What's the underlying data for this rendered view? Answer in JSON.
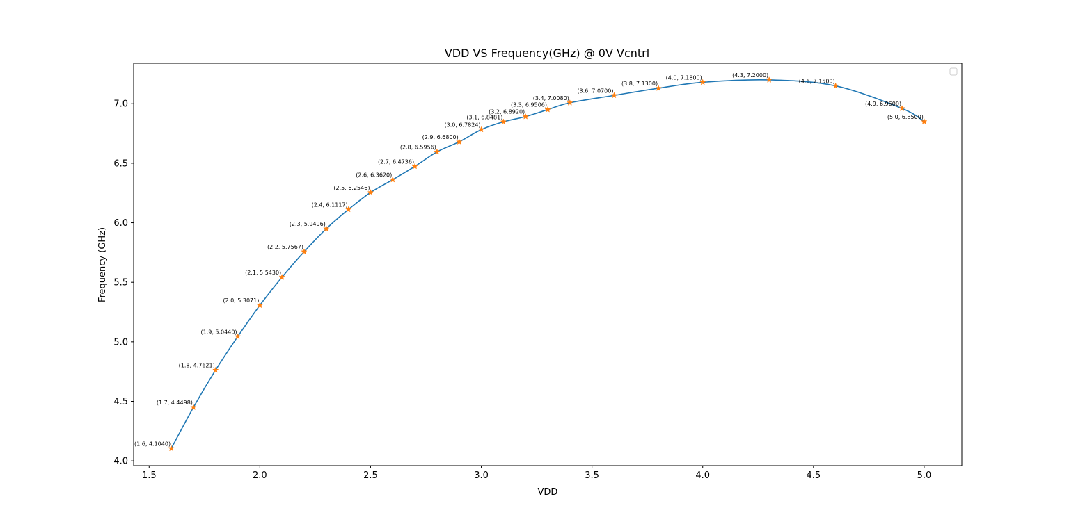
{
  "chart_data": {
    "type": "line",
    "title": "VDD VS Frequency(GHz) @ 0V Vcntrl",
    "xlabel": "VDD",
    "ylabel": "Frequency (GHz)",
    "xlim": [
      1.43,
      5.17
    ],
    "ylim": [
      3.96,
      7.34
    ],
    "xticks": [
      "1.5",
      "2.0",
      "2.5",
      "3.0",
      "3.5",
      "4.0",
      "4.5",
      "5.0"
    ],
    "xtick_values": [
      1.5,
      2.0,
      2.5,
      3.0,
      3.5,
      4.0,
      4.5,
      5.0
    ],
    "yticks": [
      "4.0",
      "4.5",
      "5.0",
      "5.5",
      "6.0",
      "6.5",
      "7.0"
    ],
    "ytick_values": [
      4.0,
      4.5,
      5.0,
      5.5,
      6.0,
      6.5,
      7.0
    ],
    "grid": false,
    "legend": "top-right",
    "line_color": "#1f77b4",
    "marker_color": "#ff7f0e",
    "marker": "star",
    "points": [
      {
        "x": 1.6,
        "y": 4.104,
        "label": "(1.6, 4.1040)"
      },
      {
        "x": 1.7,
        "y": 4.4498,
        "label": "(1.7, 4.4498)"
      },
      {
        "x": 1.8,
        "y": 4.7621,
        "label": "(1.8, 4.7621)"
      },
      {
        "x": 1.9,
        "y": 5.044,
        "label": "(1.9, 5.0440)"
      },
      {
        "x": 2.0,
        "y": 5.3071,
        "label": "(2.0, 5.3071)"
      },
      {
        "x": 2.1,
        "y": 5.543,
        "label": "(2.1, 5.5430)"
      },
      {
        "x": 2.2,
        "y": 5.7567,
        "label": "(2.2, 5.7567)"
      },
      {
        "x": 2.3,
        "y": 5.9496,
        "label": "(2.3, 5.9496)"
      },
      {
        "x": 2.4,
        "y": 6.1117,
        "label": "(2.4, 6.1117)"
      },
      {
        "x": 2.5,
        "y": 6.2546,
        "label": "(2.5, 6.2546)"
      },
      {
        "x": 2.6,
        "y": 6.362,
        "label": "(2.6, 6.3620)"
      },
      {
        "x": 2.7,
        "y": 6.4736,
        "label": "(2.7, 6.4736)"
      },
      {
        "x": 2.8,
        "y": 6.5956,
        "label": "(2.8, 6.5956)"
      },
      {
        "x": 2.9,
        "y": 6.68,
        "label": "(2.9, 6.6800)"
      },
      {
        "x": 3.0,
        "y": 6.7824,
        "label": "(3.0, 6.7824)"
      },
      {
        "x": 3.1,
        "y": 6.8481,
        "label": "(3.1, 6.8481)"
      },
      {
        "x": 3.2,
        "y": 6.892,
        "label": "(3.2, 6.8920)"
      },
      {
        "x": 3.3,
        "y": 6.9506,
        "label": "(3.3, 6.9506)"
      },
      {
        "x": 3.4,
        "y": 7.008,
        "label": "(3.4, 7.0080)"
      },
      {
        "x": 3.6,
        "y": 7.07,
        "label": "(3.6, 7.0700)"
      },
      {
        "x": 3.8,
        "y": 7.13,
        "label": "(3.8, 7.1300)"
      },
      {
        "x": 4.0,
        "y": 7.18,
        "label": "(4.0, 7.1800)"
      },
      {
        "x": 4.3,
        "y": 7.2,
        "label": "(4.3, 7.2000)"
      },
      {
        "x": 4.6,
        "y": 7.15,
        "label": "(4.6, 7.1500)"
      },
      {
        "x": 4.9,
        "y": 6.96,
        "label": "(4.9, 6.9600)"
      },
      {
        "x": 5.0,
        "y": 6.85,
        "label": "(5.0, 6.8500)"
      }
    ]
  }
}
